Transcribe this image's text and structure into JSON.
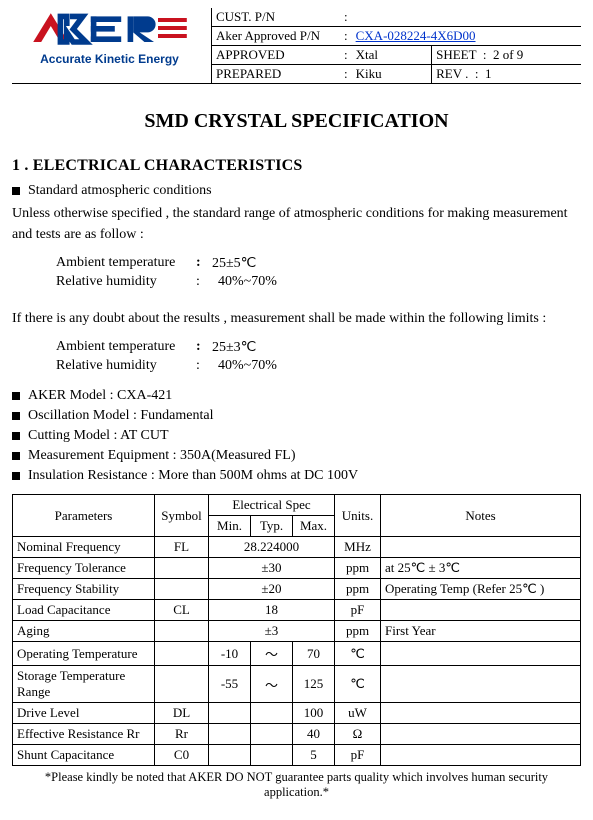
{
  "brand": {
    "logo_color": "#c9121f",
    "logo_accent": "#003b8e",
    "tagline": "Accurate Kinetic Energy"
  },
  "header": {
    "rows": [
      {
        "label": "CUST. P/N",
        "value": "",
        "right_label": null,
        "right_value": null
      },
      {
        "label": "Aker Approved P/N",
        "value": "CXA-028224-4X6D00",
        "value_link": true,
        "right_label": null,
        "right_value": null
      },
      {
        "label": "APPROVED",
        "value": "Xtal",
        "right_label": "SHEET",
        "right_value": "2 of 9"
      },
      {
        "label": "PREPARED",
        "value": "Kiku",
        "right_label": "REV .",
        "right_value": "1"
      }
    ]
  },
  "title": "SMD CRYSTAL SPECIFICATION",
  "section1_heading": "1 . ELECTRICAL  CHARACTERISTICS",
  "std_cond_label": "Standard atmospheric conditions",
  "std_cond_para": "Unless otherwise specified , the standard range of atmospheric conditions for making measurement and tests are as follow :",
  "cond1": {
    "ambient_label": "Ambient temperature",
    "ambient_value": "25±5℃",
    "humidity_label": "Relative humidity",
    "humidity_value": "40%~70%"
  },
  "doubt_para": "If there is any doubt about the results , measurement shall be made within the following limits :",
  "cond2": {
    "ambient_label": "Ambient temperature",
    "ambient_value": "25±3℃",
    "humidity_label": "Relative humidity",
    "humidity_value": "40%~70%"
  },
  "models": [
    {
      "label": "AKER Model",
      "value": "CXA-421"
    },
    {
      "label": "Oscillation Model",
      "value": "Fundamental"
    },
    {
      "label": "Cutting Model",
      "value": "AT CUT"
    },
    {
      "label": "Measurement Equipment",
      "value": "350A(Measured FL)"
    },
    {
      "label": "Insulation Resistance",
      "value": "More than 500M ohms at DC 100V"
    }
  ],
  "spec_table": {
    "group_header": "Electrical Spec",
    "columns": [
      "Parameters",
      "Symbol",
      "Min.",
      "Typ.",
      "Max.",
      "Units.",
      "Notes"
    ],
    "rows": [
      {
        "param": "Nominal Frequency",
        "symbol": "FL",
        "min": "",
        "typ": "28.224000",
        "max": "",
        "units": "MHz",
        "notes": "",
        "span_typ": true
      },
      {
        "param": "Frequency Tolerance",
        "symbol": "",
        "min": "",
        "typ": "±30",
        "max": "",
        "units": "ppm",
        "notes": "at 25℃ ± 3℃",
        "span_typ": true
      },
      {
        "param": "Frequency Stability",
        "symbol": "",
        "min": "",
        "typ": "±20",
        "max": "",
        "units": "ppm",
        "notes": "Operating Temp (Refer 25℃ )",
        "span_typ": true
      },
      {
        "param": "Load Capacitance",
        "symbol": "CL",
        "min": "",
        "typ": "18",
        "max": "",
        "units": "pF",
        "notes": "",
        "span_typ": true
      },
      {
        "param": "Aging",
        "symbol": "",
        "min": "",
        "typ": "±3",
        "max": "",
        "units": "ppm",
        "notes": "First Year",
        "span_typ": true
      },
      {
        "param": "Operating Temperature",
        "symbol": "",
        "min": "-10",
        "typ": "～",
        "max": "70",
        "units": "℃",
        "notes": ""
      },
      {
        "param": "Storage Temperature Range",
        "symbol": "",
        "min": "-55",
        "typ": "～",
        "max": "125",
        "units": "℃",
        "notes": ""
      },
      {
        "param": "Drive Level",
        "symbol": "DL",
        "min": "",
        "typ": "",
        "max": "100",
        "units": "uW",
        "notes": ""
      },
      {
        "param": "Effective Resistance Rr",
        "symbol": "Rr",
        "min": "",
        "typ": "",
        "max": "40",
        "units": "Ω",
        "notes": ""
      },
      {
        "param": "Shunt Capacitance",
        "symbol": "C0",
        "min": "",
        "typ": "",
        "max": "5",
        "units": "pF",
        "notes": ""
      }
    ]
  },
  "footnote": "*Please kindly be noted that AKER DO NOT guarantee parts quality which involves human security application.*"
}
